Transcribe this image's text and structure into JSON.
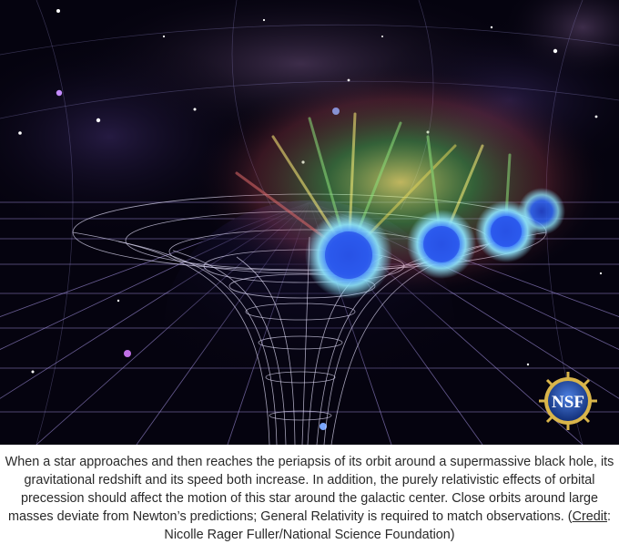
{
  "image": {
    "subject": "star-orbiting-black-hole-spacetime-illustration",
    "logo_text": "NSF",
    "colors": {
      "space": "#05030f",
      "grid": "#b9a6ff",
      "star_core": "#2f6bff",
      "star_glow": "#8fe7ff"
    }
  },
  "caption": {
    "text": "When a star approaches and then reaches the periapsis of its orbit around a supermassive black hole, its gravitational redshift and its speed both increase. In addition, the purely relativistic effects of orbital precession should affect the motion of this star around the galactic center. Close orbits around large masses deviate from Newton’s predictions; General Relativity is required to match observations. (",
    "credit_link": "Credit",
    "credit_rest": ": Nicolle Rager Fuller/National Science Foundation)"
  }
}
